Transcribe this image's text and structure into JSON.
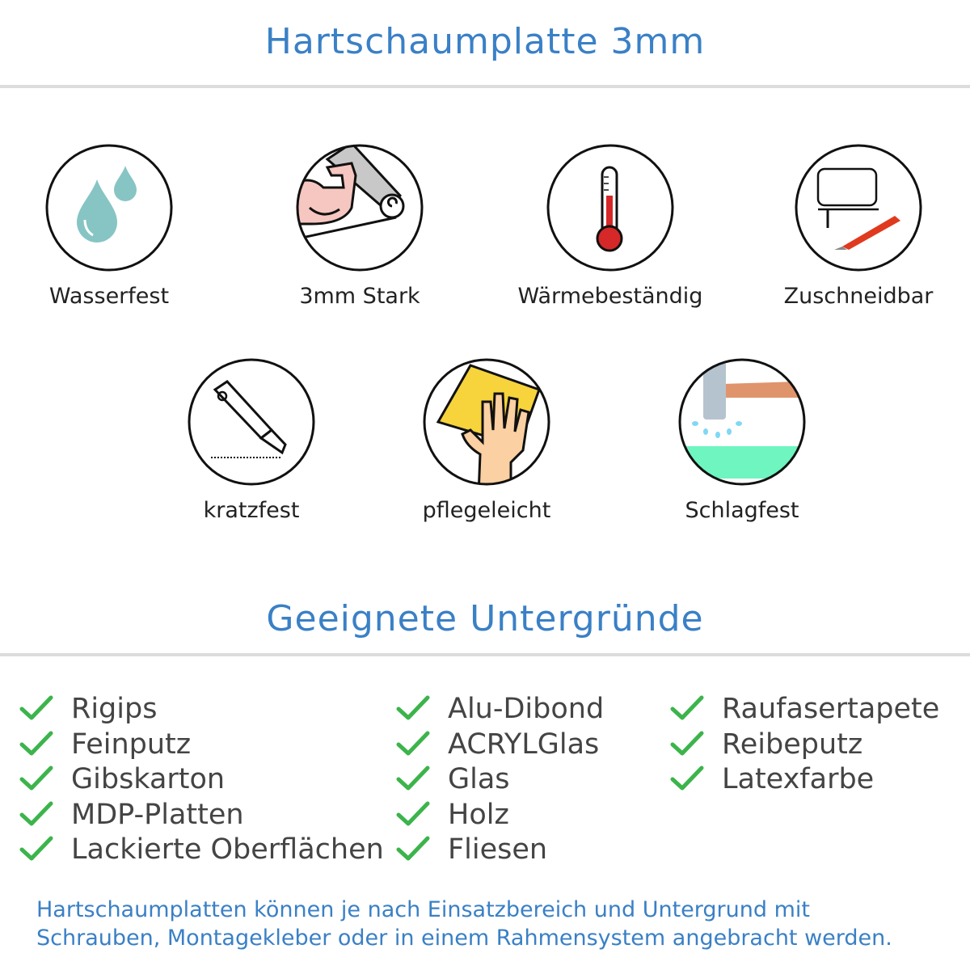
{
  "header": {
    "title": "Hartschaumplatte 3mm"
  },
  "features": [
    {
      "label": "Wasserfest",
      "icon": "water-drops-icon"
    },
    {
      "label": "3mm Stark",
      "icon": "strong-arm-icon"
    },
    {
      "label": "Wärmebeständig",
      "icon": "thermometer-icon"
    },
    {
      "label": "Zuschneidbar",
      "icon": "jigsaw-cutter-icon"
    },
    {
      "label": "kratzfest",
      "icon": "utility-knife-icon"
    },
    {
      "label": "pflegeleicht",
      "icon": "cleaning-hand-icon"
    },
    {
      "label": "Schlagfest",
      "icon": "hammer-icon"
    }
  ],
  "surfaces": {
    "title": "Geeignete Untergründe",
    "columns": [
      [
        "Rigips",
        "Feinputz",
        "Gibskarton",
        "MDP-Platten",
        "Lackierte Oberflächen"
      ],
      [
        "Alu-Dibond",
        "ACRYLGlas",
        "Glas",
        "Holz",
        "Fliesen"
      ],
      [
        "Raufasertapete",
        "Reibeputz",
        "Latexfarbe"
      ]
    ]
  },
  "footer": {
    "line1": "Hartschaumplatten können je nach Einsatzbereich und Untergrund mit",
    "line2": "Schrauben, Montagekleber oder in einem Rahmensystem angebracht werden."
  },
  "colors": {
    "accent": "#3a80c6",
    "check": "#3cb44b",
    "divider": "#dcdcdc"
  }
}
